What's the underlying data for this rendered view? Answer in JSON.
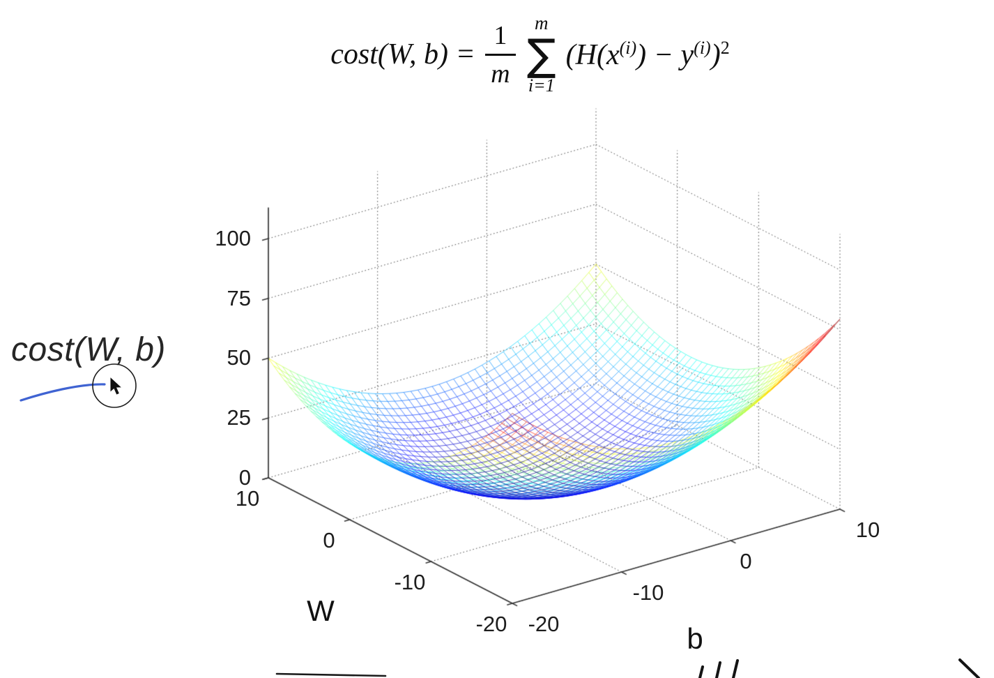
{
  "formula": {
    "lhs": "cost(W, b) =",
    "frac_num": "1",
    "frac_den": "m",
    "sigma": "∑",
    "sum_sup": "m",
    "sum_sub": "i=1",
    "body_1": "(H(x",
    "sup_1": "(i)",
    "body_2": ") − y",
    "sup_2": "(i)",
    "body_3": ")",
    "sup_3": "2"
  },
  "annotation": {
    "label": "cost(W, b)"
  },
  "colors": {
    "pen_blue": "#3f63d2",
    "axis_color": "#333333",
    "grid_color": "#4a4a4a",
    "text_color": "#1d1d1d"
  },
  "chart_data": {
    "type": "surface",
    "title": "",
    "xlabel": "b",
    "ylabel": "W",
    "zlabel": "cost(W, b)",
    "colormap": "jet",
    "grid": true,
    "x_range": [
      -20,
      10
    ],
    "y_range": [
      -20,
      10
    ],
    "z_range": [
      0,
      100
    ],
    "x_ticks": [
      "-20",
      "-10",
      "0",
      "10"
    ],
    "y_ticks": [
      "10",
      "0",
      "-10",
      "-20"
    ],
    "z_ticks": [
      "100",
      "75",
      "50",
      "25",
      "0"
    ],
    "x_tick_values": [
      -20,
      -10,
      0,
      10
    ],
    "y_tick_values": [
      10,
      0,
      -10,
      -20
    ],
    "z_tick_values": [
      100,
      75,
      50,
      25,
      0
    ],
    "surface": {
      "function": "z = s*((W-w0)^2 + (b-b0)^2)",
      "w0": -1.5,
      "b0": -5,
      "s": 0.14,
      "mesh_lines": 46
    },
    "z_min_point": {
      "W": -1.5,
      "b": -5,
      "z": 0
    },
    "z_corners": [
      {
        "W": 10,
        "b": -20,
        "z": 50
      },
      {
        "W": 10,
        "b": 10,
        "z": 50
      },
      {
        "W": -20,
        "b": -20,
        "z": 79
      },
      {
        "W": -20,
        "b": 10,
        "z": 79
      }
    ]
  }
}
